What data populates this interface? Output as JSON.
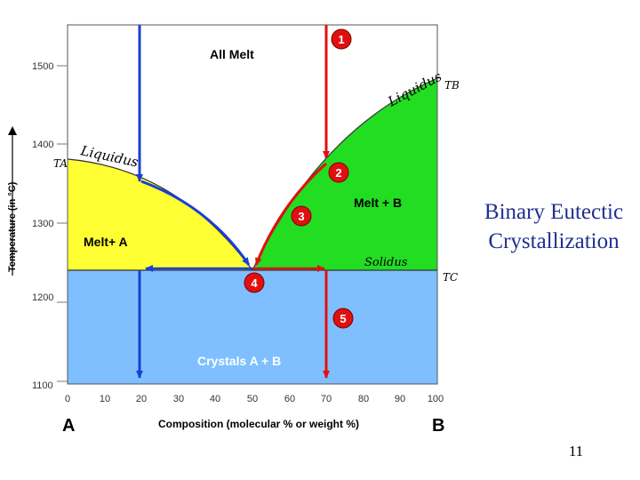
{
  "slide": {
    "title_line1": "Binary Eutectic",
    "title_line2": "Crystallization",
    "page_number": "11"
  },
  "diagram": {
    "y_axis_label": "Temperature (in °C)",
    "x_axis_label": "Composition (molecular % or weight %)",
    "component_a": "A",
    "component_b": "B",
    "y_ticks": [
      "1500",
      "1400",
      "1300",
      "1200",
      "1100"
    ],
    "x_ticks": [
      "0",
      "10",
      "20",
      "30",
      "40",
      "50",
      "60",
      "70",
      "80",
      "90",
      "100"
    ],
    "regions": {
      "all_melt": "All Melt",
      "melt_a": "Melt+ A",
      "melt_b": "Melt + B",
      "crystals": "Crystals A + B"
    },
    "curve_labels": {
      "liquidus_left": "Liquidus",
      "liquidus_right": "Liquidus",
      "solidus": "Solidus",
      "ta": "TA",
      "tb": "TB",
      "tc": "TC"
    },
    "steps": [
      "1",
      "2",
      "3",
      "4",
      "5"
    ],
    "colors": {
      "melt_a": "#ffff33",
      "melt_b": "#22dd22",
      "crystals": "#7fbfff",
      "red_path": "#e01010",
      "blue_path": "#1a3fd6"
    }
  }
}
